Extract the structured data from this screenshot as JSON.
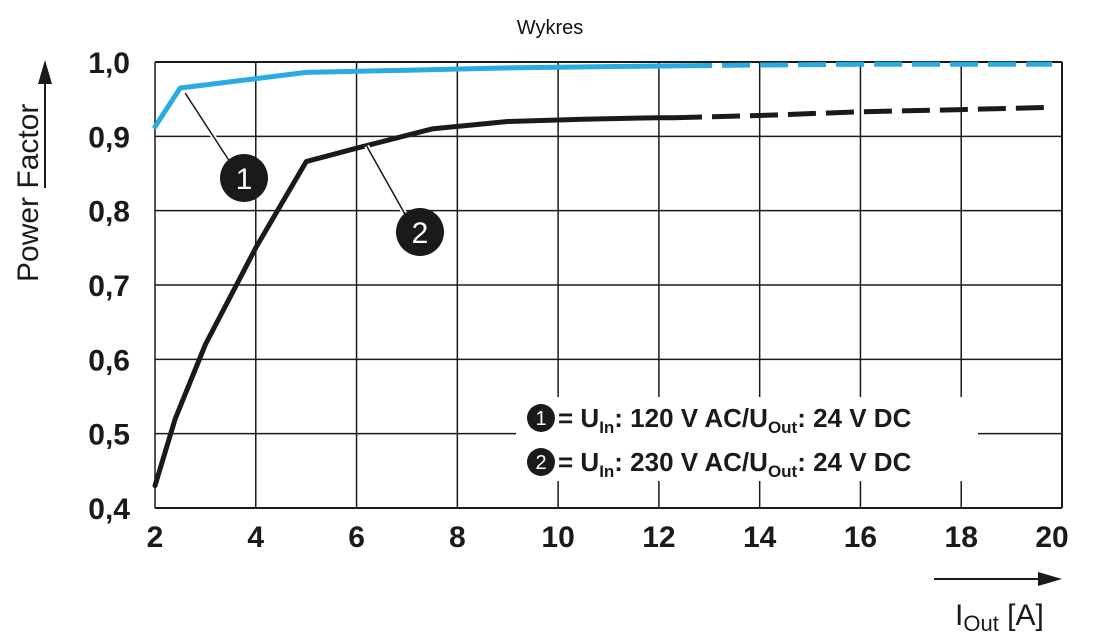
{
  "chart_data": {
    "type": "line",
    "title": "Wykres",
    "xlabel_main": "I",
    "xlabel_sub": "Out",
    "xlabel_unit": " [A]",
    "ylabel": "Power Factor",
    "xlim": [
      2,
      20
    ],
    "ylim": [
      0.4,
      1.0
    ],
    "grid": true,
    "x_ticks": [
      {
        "value": 2,
        "label": "2"
      },
      {
        "value": 4,
        "label": "4"
      },
      {
        "value": 6,
        "label": "6"
      },
      {
        "value": 8,
        "label": "8"
      },
      {
        "value": 10,
        "label": "10"
      },
      {
        "value": 12,
        "label": "12"
      },
      {
        "value": 14,
        "label": "14"
      },
      {
        "value": 16,
        "label": "16"
      },
      {
        "value": 18,
        "label": "18"
      },
      {
        "value": 20,
        "label": "20"
      }
    ],
    "y_ticks": [
      {
        "value": 0.4,
        "label": "0,4"
      },
      {
        "value": 0.5,
        "label": "0,5"
      },
      {
        "value": 0.6,
        "label": "0,6"
      },
      {
        "value": 0.7,
        "label": "0,7"
      },
      {
        "value": 0.8,
        "label": "0,8"
      },
      {
        "value": 0.9,
        "label": "0,9"
      },
      {
        "value": 1.0,
        "label": "1,0"
      }
    ],
    "series": [
      {
        "marker": "1",
        "color": "#29aae1",
        "legend_parts": [
          "= U",
          "In",
          ": 120 V AC/U",
          "Out",
          ": 24 V DC"
        ],
        "solid": [
          [
            2,
            0.913
          ],
          [
            2.5,
            0.965
          ],
          [
            5,
            0.986
          ],
          [
            7,
            0.989
          ],
          [
            9,
            0.992
          ],
          [
            12.5,
            0.995
          ]
        ],
        "dashed": [
          [
            12.5,
            0.995
          ],
          [
            16,
            0.997
          ],
          [
            19.8,
            0.997
          ]
        ]
      },
      {
        "marker": "2",
        "color": "#1a1a1a",
        "legend_parts": [
          "= U",
          "In",
          ": 230 V AC/U",
          "Out",
          ": 24 V DC"
        ],
        "solid": [
          [
            2,
            0.43
          ],
          [
            2.4,
            0.52
          ],
          [
            3,
            0.62
          ],
          [
            4,
            0.75
          ],
          [
            5,
            0.866
          ],
          [
            6,
            0.884
          ],
          [
            7.5,
            0.91
          ],
          [
            9,
            0.92
          ],
          [
            10.5,
            0.923
          ],
          [
            12,
            0.925
          ],
          [
            12.3,
            0.925
          ]
        ],
        "dashed": [
          [
            12.3,
            0.925
          ],
          [
            14,
            0.928
          ],
          [
            16,
            0.933
          ],
          [
            18,
            0.936
          ],
          [
            19.8,
            0.939
          ]
        ]
      }
    ]
  }
}
